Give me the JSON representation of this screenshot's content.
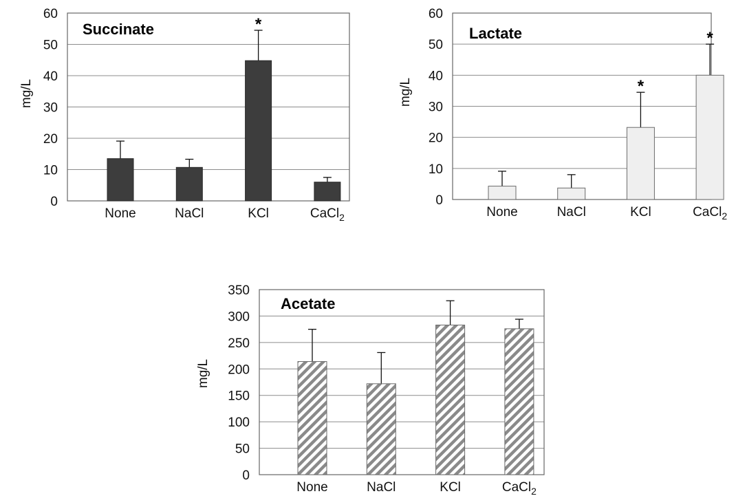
{
  "chart_data": [
    {
      "type": "bar",
      "title": "Succinate",
      "xlabel": "",
      "ylabel": "mg/L",
      "categories": [
        "None",
        "NaCl",
        "KCl",
        "CaCl₂"
      ],
      "values": [
        13.5,
        10.7,
        44.8,
        6.0
      ],
      "error": [
        5.6,
        2.6,
        9.7,
        1.5
      ],
      "significance": [
        "",
        "",
        "*",
        ""
      ],
      "ylim": [
        0,
        60
      ],
      "yticks": [
        0,
        10,
        20,
        30,
        40,
        50,
        60
      ],
      "grid": true,
      "bar_fill": "#3d3d3d",
      "bar_style": "solid"
    },
    {
      "type": "bar",
      "title": "Lactate",
      "xlabel": "",
      "ylabel": "mg/L",
      "categories": [
        "None",
        "NaCl",
        "KCl",
        "CaCl₂"
      ],
      "values": [
        4.3,
        3.7,
        23.2,
        40.0
      ],
      "error": [
        4.8,
        4.3,
        11.3,
        10.0
      ],
      "significance": [
        "",
        "",
        "*",
        "*"
      ],
      "ylim": [
        0,
        60
      ],
      "yticks": [
        0,
        10,
        20,
        30,
        40,
        50,
        60
      ],
      "grid": true,
      "bar_fill": "#efefef",
      "bar_style": "solid"
    },
    {
      "type": "bar",
      "title": "Acetate",
      "xlabel": "",
      "ylabel": "mg/L",
      "categories": [
        "None",
        "NaCl",
        "KCl",
        "CaCl₂"
      ],
      "values": [
        214,
        172,
        283,
        276
      ],
      "error": [
        61,
        59,
        46,
        18
      ],
      "significance": [
        "",
        "",
        "",
        ""
      ],
      "ylim": [
        0,
        350
      ],
      "yticks": [
        0,
        50,
        100,
        150,
        200,
        250,
        300,
        350
      ],
      "grid": true,
      "bar_fill": "#8a8a8a",
      "bar_style": "hatched"
    }
  ]
}
